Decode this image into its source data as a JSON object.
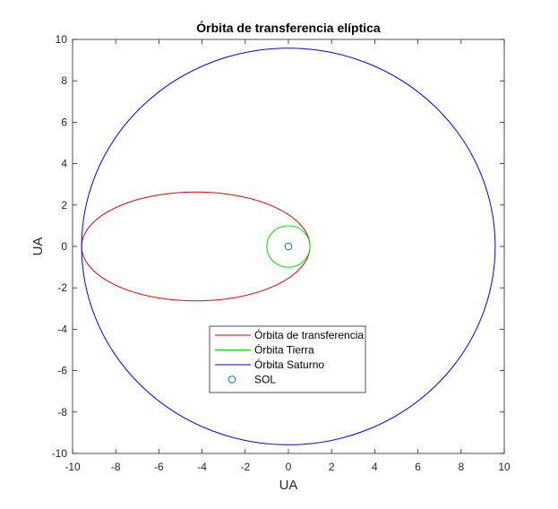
{
  "chart_data": {
    "type": "line",
    "title": "Órbita de transferencia elíptica",
    "xlabel": "UA",
    "ylabel": "UA",
    "xlim": [
      -10,
      10
    ],
    "ylim": [
      -10,
      10
    ],
    "xticks": [
      -10,
      -8,
      -6,
      -4,
      -2,
      0,
      2,
      4,
      6,
      8,
      10
    ],
    "yticks": [
      -10,
      -8,
      -6,
      -4,
      -2,
      0,
      2,
      4,
      6,
      8,
      10
    ],
    "grid": false,
    "legend_position": "lower-center",
    "series": [
      {
        "name": "Órbita de transferencia",
        "kind": "ellipse",
        "color": "#e8000b",
        "center_x": -4.29,
        "center_y": 0,
        "semi_major_axis": 5.29,
        "semi_minor_axis": 2.63
      },
      {
        "name": "Órbita Tierra",
        "kind": "circle",
        "color": "#00e000",
        "center_x": 0,
        "center_y": 0,
        "radius": 1.0
      },
      {
        "name": "Órbita Saturno",
        "kind": "circle",
        "color": "#0000ff",
        "center_x": 0,
        "center_y": 0,
        "radius": 9.58
      },
      {
        "name": "SOL",
        "kind": "marker",
        "marker": "circle-open",
        "color": "#0072bd",
        "x": 0,
        "y": 0
      }
    ]
  }
}
